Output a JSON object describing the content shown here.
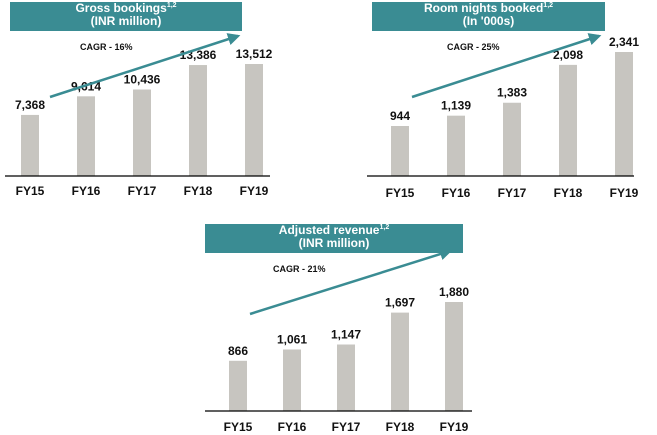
{
  "colors": {
    "banner": "#3a8c93",
    "bar": "#c7c5c0",
    "arrow": "#3a8c93",
    "axis": "#000000"
  },
  "chart_data": [
    {
      "type": "bar",
      "title": "Gross bookings",
      "title_sup": "1,2",
      "subtitle": "(INR million)",
      "annotation": "CAGR - 16%",
      "categories": [
        "FY15",
        "FY16",
        "FY17",
        "FY18",
        "FY19"
      ],
      "values": [
        7368,
        9614,
        10436,
        13386,
        13512
      ],
      "value_labels": [
        "7,368",
        "9,614",
        "10,436",
        "13,386",
        "13,512"
      ],
      "grid": false,
      "legend": "none"
    },
    {
      "type": "bar",
      "title": "Room nights booked",
      "title_sup": "1,2",
      "subtitle": "(In '000s)",
      "annotation": "CAGR - 25%",
      "categories": [
        "FY15",
        "FY16",
        "FY17",
        "FY18",
        "FY19"
      ],
      "values": [
        944,
        1139,
        1383,
        2098,
        2341
      ],
      "value_labels": [
        "944",
        "1,139",
        "1,383",
        "2,098",
        "2,341"
      ],
      "grid": false,
      "legend": "none"
    },
    {
      "type": "bar",
      "title": "Adjusted revenue",
      "title_sup": "1,2",
      "subtitle": "(INR million)",
      "annotation": "CAGR - 21%",
      "categories": [
        "FY15",
        "FY16",
        "FY17",
        "FY18",
        "FY19"
      ],
      "values": [
        866,
        1061,
        1147,
        1697,
        1880
      ],
      "value_labels": [
        "866",
        "1,061",
        "1,147",
        "1,697",
        "1,880"
      ],
      "grid": false,
      "legend": "none"
    }
  ]
}
